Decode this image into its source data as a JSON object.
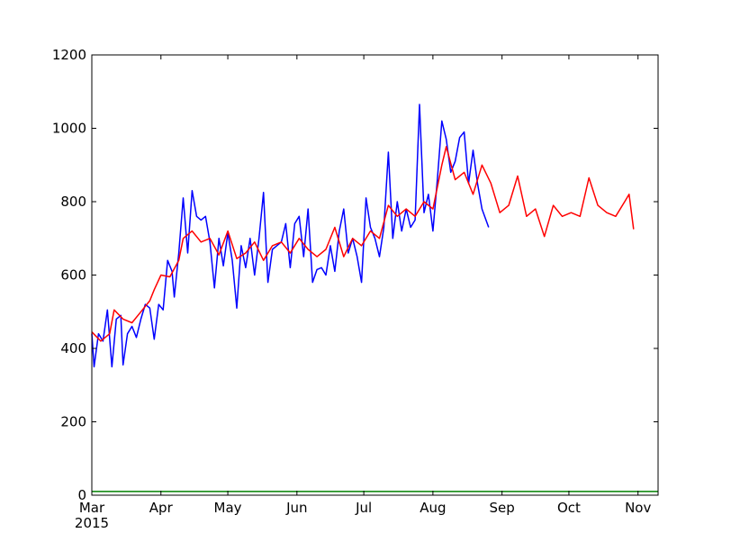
{
  "chart_data": {
    "type": "line",
    "title": "",
    "xlabel": "",
    "ylabel": "",
    "x_ticks": [
      {
        "date": "2015-03-01",
        "label": "Mar",
        "sublabel": "2015"
      },
      {
        "date": "2015-04-01",
        "label": "Apr"
      },
      {
        "date": "2015-05-01",
        "label": "May"
      },
      {
        "date": "2015-06-01",
        "label": "Jun"
      },
      {
        "date": "2015-07-01",
        "label": "Jul"
      },
      {
        "date": "2015-08-01",
        "label": "Aug"
      },
      {
        "date": "2015-09-01",
        "label": "Sep"
      },
      {
        "date": "2015-10-01",
        "label": "Oct"
      },
      {
        "date": "2015-11-01",
        "label": "Nov"
      }
    ],
    "y_ticks": [
      "0",
      "200",
      "400",
      "600",
      "800",
      "1000",
      "1200"
    ],
    "xlim": [
      "2015-03-01",
      "2015-11-10"
    ],
    "ylim": [
      0,
      1200
    ],
    "grid": false,
    "legend": "none",
    "series": [
      {
        "color": "#0000ff",
        "points": [
          [
            "2015-03-01",
            440
          ],
          [
            "2015-03-02",
            350
          ],
          [
            "2015-03-04",
            440
          ],
          [
            "2015-03-06",
            420
          ],
          [
            "2015-03-08",
            505
          ],
          [
            "2015-03-10",
            350
          ],
          [
            "2015-03-12",
            480
          ],
          [
            "2015-03-14",
            490
          ],
          [
            "2015-03-15",
            355
          ],
          [
            "2015-03-17",
            440
          ],
          [
            "2015-03-19",
            460
          ],
          [
            "2015-03-21",
            430
          ],
          [
            "2015-03-23",
            480
          ],
          [
            "2015-03-25",
            520
          ],
          [
            "2015-03-27",
            510
          ],
          [
            "2015-03-29",
            425
          ],
          [
            "2015-03-31",
            520
          ],
          [
            "2015-04-02",
            505
          ],
          [
            "2015-04-04",
            640
          ],
          [
            "2015-04-06",
            610
          ],
          [
            "2015-04-07",
            540
          ],
          [
            "2015-04-09",
            660
          ],
          [
            "2015-04-11",
            810
          ],
          [
            "2015-04-13",
            660
          ],
          [
            "2015-04-15",
            830
          ],
          [
            "2015-04-17",
            760
          ],
          [
            "2015-04-19",
            750
          ],
          [
            "2015-04-21",
            760
          ],
          [
            "2015-04-23",
            690
          ],
          [
            "2015-04-25",
            565
          ],
          [
            "2015-04-27",
            700
          ],
          [
            "2015-04-29",
            625
          ],
          [
            "2015-05-01",
            715
          ],
          [
            "2015-05-03",
            640
          ],
          [
            "2015-05-05",
            510
          ],
          [
            "2015-05-07",
            680
          ],
          [
            "2015-05-09",
            620
          ],
          [
            "2015-05-11",
            700
          ],
          [
            "2015-05-13",
            600
          ],
          [
            "2015-05-15",
            700
          ],
          [
            "2015-05-17",
            825
          ],
          [
            "2015-05-19",
            580
          ],
          [
            "2015-05-21",
            670
          ],
          [
            "2015-05-23",
            680
          ],
          [
            "2015-05-25",
            690
          ],
          [
            "2015-05-27",
            740
          ],
          [
            "2015-05-29",
            620
          ],
          [
            "2015-05-31",
            740
          ],
          [
            "2015-06-02",
            760
          ],
          [
            "2015-06-04",
            650
          ],
          [
            "2015-06-06",
            780
          ],
          [
            "2015-06-08",
            580
          ],
          [
            "2015-06-10",
            615
          ],
          [
            "2015-06-12",
            620
          ],
          [
            "2015-06-14",
            600
          ],
          [
            "2015-06-16",
            680
          ],
          [
            "2015-06-18",
            610
          ],
          [
            "2015-06-20",
            720
          ],
          [
            "2015-06-22",
            780
          ],
          [
            "2015-06-24",
            660
          ],
          [
            "2015-06-26",
            700
          ],
          [
            "2015-06-28",
            650
          ],
          [
            "2015-06-30",
            580
          ],
          [
            "2015-07-02",
            810
          ],
          [
            "2015-07-04",
            730
          ],
          [
            "2015-07-06",
            700
          ],
          [
            "2015-07-08",
            650
          ],
          [
            "2015-07-10",
            730
          ],
          [
            "2015-07-12",
            935
          ],
          [
            "2015-07-14",
            700
          ],
          [
            "2015-07-16",
            800
          ],
          [
            "2015-07-18",
            720
          ],
          [
            "2015-07-20",
            780
          ],
          [
            "2015-07-22",
            730
          ],
          [
            "2015-07-24",
            750
          ],
          [
            "2015-07-26",
            1065
          ],
          [
            "2015-07-28",
            770
          ],
          [
            "2015-07-30",
            820
          ],
          [
            "2015-08-01",
            720
          ],
          [
            "2015-08-03",
            860
          ],
          [
            "2015-08-05",
            1020
          ],
          [
            "2015-08-07",
            970
          ],
          [
            "2015-08-09",
            880
          ],
          [
            "2015-08-11",
            910
          ],
          [
            "2015-08-13",
            975
          ],
          [
            "2015-08-15",
            990
          ],
          [
            "2015-08-17",
            850
          ],
          [
            "2015-08-19",
            940
          ],
          [
            "2015-08-21",
            850
          ],
          [
            "2015-08-23",
            780
          ],
          [
            "2015-08-26",
            730
          ]
        ]
      },
      {
        "color": "#ff0000",
        "points": [
          [
            "2015-03-01",
            445
          ],
          [
            "2015-03-05",
            420
          ],
          [
            "2015-03-09",
            440
          ],
          [
            "2015-03-11",
            505
          ],
          [
            "2015-03-15",
            480
          ],
          [
            "2015-03-19",
            470
          ],
          [
            "2015-03-23",
            500
          ],
          [
            "2015-03-27",
            530
          ],
          [
            "2015-03-29",
            560
          ],
          [
            "2015-04-01",
            600
          ],
          [
            "2015-04-05",
            595
          ],
          [
            "2015-04-09",
            640
          ],
          [
            "2015-04-11",
            700
          ],
          [
            "2015-04-15",
            720
          ],
          [
            "2015-04-19",
            690
          ],
          [
            "2015-04-23",
            700
          ],
          [
            "2015-04-27",
            655
          ],
          [
            "2015-05-01",
            720
          ],
          [
            "2015-05-05",
            645
          ],
          [
            "2015-05-09",
            660
          ],
          [
            "2015-05-13",
            690
          ],
          [
            "2015-05-17",
            640
          ],
          [
            "2015-05-21",
            680
          ],
          [
            "2015-05-25",
            690
          ],
          [
            "2015-05-29",
            660
          ],
          [
            "2015-06-02",
            700
          ],
          [
            "2015-06-06",
            670
          ],
          [
            "2015-06-10",
            650
          ],
          [
            "2015-06-14",
            670
          ],
          [
            "2015-06-18",
            730
          ],
          [
            "2015-06-22",
            650
          ],
          [
            "2015-06-26",
            700
          ],
          [
            "2015-06-30",
            680
          ],
          [
            "2015-07-04",
            720
          ],
          [
            "2015-07-08",
            700
          ],
          [
            "2015-07-12",
            790
          ],
          [
            "2015-07-16",
            760
          ],
          [
            "2015-07-20",
            780
          ],
          [
            "2015-07-24",
            760
          ],
          [
            "2015-07-28",
            800
          ],
          [
            "2015-08-01",
            780
          ],
          [
            "2015-08-05",
            900
          ],
          [
            "2015-08-07",
            950
          ],
          [
            "2015-08-11",
            860
          ],
          [
            "2015-08-15",
            880
          ],
          [
            "2015-08-19",
            820
          ],
          [
            "2015-08-23",
            900
          ],
          [
            "2015-08-27",
            850
          ],
          [
            "2015-08-31",
            770
          ],
          [
            "2015-09-04",
            790
          ],
          [
            "2015-09-08",
            870
          ],
          [
            "2015-09-12",
            760
          ],
          [
            "2015-09-16",
            780
          ],
          [
            "2015-09-20",
            705
          ],
          [
            "2015-09-24",
            790
          ],
          [
            "2015-09-28",
            760
          ],
          [
            "2015-10-02",
            770
          ],
          [
            "2015-10-06",
            760
          ],
          [
            "2015-10-10",
            865
          ],
          [
            "2015-10-14",
            790
          ],
          [
            "2015-10-18",
            770
          ],
          [
            "2015-10-22",
            760
          ],
          [
            "2015-10-26",
            800
          ],
          [
            "2015-10-28",
            820
          ],
          [
            "2015-10-30",
            725
          ]
        ]
      },
      {
        "color": "#008000",
        "points": [
          [
            "2015-03-01",
            10
          ],
          [
            "2015-11-10",
            10
          ]
        ]
      }
    ]
  }
}
